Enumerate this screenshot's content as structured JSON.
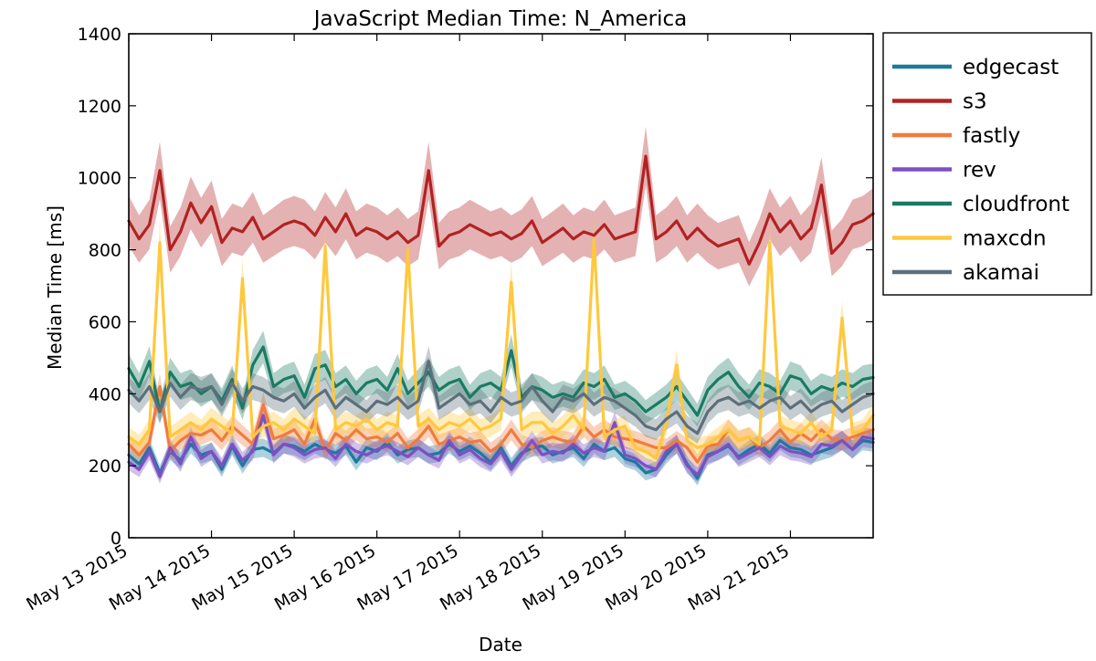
{
  "chart_data": {
    "type": "line",
    "title": "JavaScript Median Time: N_America",
    "xlabel": "Date",
    "ylabel": "Median Time [ms]",
    "ylim": [
      0,
      1400
    ],
    "yticks": [
      0,
      200,
      400,
      600,
      800,
      1000,
      1200,
      1400
    ],
    "xlim": [
      "2015-05-13 00:00",
      "2015-05-22 00:00"
    ],
    "xticks": [
      "May 13 2015",
      "May 14 2015",
      "May 15 2015",
      "May 16 2015",
      "May 17 2015",
      "May 18 2015",
      "May 19 2015",
      "May 20 2015",
      "May 21 2015"
    ],
    "x": [
      "2015-05-13 00:00",
      "2015-05-13 03:00",
      "2015-05-13 06:00",
      "2015-05-13 09:00",
      "2015-05-13 12:00",
      "2015-05-13 15:00",
      "2015-05-13 18:00",
      "2015-05-13 21:00",
      "2015-05-14 00:00",
      "2015-05-14 03:00",
      "2015-05-14 06:00",
      "2015-05-14 09:00",
      "2015-05-14 12:00",
      "2015-05-14 15:00",
      "2015-05-14 18:00",
      "2015-05-14 21:00",
      "2015-05-15 00:00",
      "2015-05-15 03:00",
      "2015-05-15 06:00",
      "2015-05-15 09:00",
      "2015-05-15 12:00",
      "2015-05-15 15:00",
      "2015-05-15 18:00",
      "2015-05-15 21:00",
      "2015-05-16 00:00",
      "2015-05-16 03:00",
      "2015-05-16 06:00",
      "2015-05-16 09:00",
      "2015-05-16 12:00",
      "2015-05-16 15:00",
      "2015-05-16 18:00",
      "2015-05-16 21:00",
      "2015-05-17 00:00",
      "2015-05-17 03:00",
      "2015-05-17 06:00",
      "2015-05-17 09:00",
      "2015-05-17 12:00",
      "2015-05-17 15:00",
      "2015-05-17 18:00",
      "2015-05-17 21:00",
      "2015-05-18 00:00",
      "2015-05-18 03:00",
      "2015-05-18 06:00",
      "2015-05-18 09:00",
      "2015-05-18 12:00",
      "2015-05-18 15:00",
      "2015-05-18 18:00",
      "2015-05-18 21:00",
      "2015-05-19 00:00",
      "2015-05-19 03:00",
      "2015-05-19 06:00",
      "2015-05-19 09:00",
      "2015-05-19 12:00",
      "2015-05-19 15:00",
      "2015-05-19 18:00",
      "2015-05-19 21:00",
      "2015-05-20 00:00",
      "2015-05-20 03:00",
      "2015-05-20 06:00",
      "2015-05-20 09:00",
      "2015-05-20 12:00",
      "2015-05-20 15:00",
      "2015-05-20 18:00",
      "2015-05-20 21:00",
      "2015-05-21 00:00",
      "2015-05-21 03:00",
      "2015-05-21 06:00",
      "2015-05-21 09:00",
      "2015-05-21 12:00",
      "2015-05-21 15:00",
      "2015-05-21 18:00",
      "2015-05-21 21:00",
      "2015-05-22 00:00"
    ],
    "grid": false,
    "legend_placement": "outside-right-top",
    "series": [
      {
        "name": "edgecast",
        "color": "#1b7a9e",
        "values": [
          230,
          205,
          250,
          180,
          240,
          215,
          260,
          230,
          240,
          190,
          255,
          200,
          245,
          250,
          235,
          260,
          255,
          240,
          260,
          245,
          235,
          255,
          210,
          250,
          240,
          265,
          230,
          245,
          250,
          230,
          235,
          260,
          240,
          255,
          235,
          210,
          250,
          200,
          235,
          250,
          255,
          230,
          240,
          250,
          220,
          260,
          240,
          250,
          220,
          210,
          180,
          190,
          230,
          260,
          205,
          165,
          230,
          240,
          255,
          225,
          245,
          260,
          235,
          270,
          250,
          245,
          230,
          240,
          250,
          270,
          245,
          270,
          265
        ]
      },
      {
        "name": "s3",
        "color": "#b22222",
        "values": [
          880,
          830,
          870,
          1020,
          800,
          850,
          930,
          875,
          920,
          820,
          860,
          850,
          890,
          830,
          850,
          870,
          880,
          870,
          840,
          890,
          850,
          900,
          840,
          860,
          850,
          830,
          850,
          820,
          840,
          1020,
          810,
          840,
          850,
          870,
          855,
          840,
          850,
          830,
          845,
          880,
          820,
          840,
          860,
          830,
          850,
          840,
          870,
          830,
          840,
          850,
          1060,
          830,
          850,
          880,
          830,
          860,
          830,
          810,
          820,
          830,
          760,
          820,
          900,
          850,
          880,
          830,
          860,
          980,
          790,
          820,
          870,
          880,
          900
        ]
      },
      {
        "name": "fastly",
        "color": "#f07b3f",
        "values": [
          260,
          230,
          265,
          420,
          240,
          270,
          290,
          285,
          300,
          270,
          310,
          285,
          260,
          370,
          275,
          285,
          300,
          260,
          330,
          240,
          290,
          270,
          300,
          275,
          280,
          265,
          290,
          250,
          275,
          310,
          260,
          270,
          280,
          265,
          270,
          240,
          260,
          300,
          260,
          250,
          270,
          280,
          270,
          265,
          310,
          280,
          300,
          280,
          275,
          270,
          260,
          250,
          250,
          270,
          250,
          210,
          255,
          260,
          300,
          270,
          280,
          250,
          270,
          300,
          265,
          290,
          270,
          300,
          275,
          270,
          280,
          290,
          300
        ]
      },
      {
        "name": "rev",
        "color": "#7e4fc4",
        "values": [
          210,
          190,
          240,
          170,
          250,
          205,
          280,
          220,
          240,
          200,
          260,
          215,
          240,
          340,
          230,
          260,
          250,
          230,
          245,
          250,
          220,
          260,
          240,
          230,
          245,
          255,
          240,
          225,
          250,
          230,
          215,
          270,
          230,
          245,
          220,
          205,
          240,
          190,
          230,
          270,
          230,
          240,
          235,
          260,
          235,
          250,
          240,
          320,
          230,
          220,
          200,
          190,
          240,
          260,
          200,
          175,
          225,
          240,
          260,
          220,
          235,
          250,
          225,
          255,
          240,
          235,
          225,
          260,
          255,
          270,
          245,
          280,
          275
        ]
      },
      {
        "name": "cloudfront",
        "color": "#1b7a63",
        "values": [
          470,
          420,
          490,
          350,
          460,
          420,
          430,
          400,
          420,
          380,
          440,
          360,
          480,
          530,
          420,
          440,
          450,
          390,
          470,
          480,
          420,
          440,
          400,
          430,
          440,
          410,
          470,
          400,
          430,
          460,
          410,
          430,
          440,
          390,
          420,
          430,
          410,
          520,
          390,
          420,
          410,
          390,
          400,
          390,
          430,
          420,
          440,
          390,
          400,
          380,
          350,
          370,
          390,
          420,
          380,
          340,
          410,
          440,
          460,
          420,
          390,
          430,
          420,
          400,
          450,
          440,
          400,
          420,
          410,
          430,
          420,
          440,
          445
        ]
      },
      {
        "name": "maxcdn",
        "color": "#ffc83d",
        "values": [
          280,
          260,
          300,
          820,
          280,
          300,
          320,
          300,
          330,
          310,
          290,
          720,
          280,
          310,
          320,
          300,
          330,
          310,
          290,
          810,
          300,
          320,
          310,
          330,
          300,
          320,
          310,
          800,
          310,
          330,
          300,
          320,
          310,
          330,
          300,
          310,
          330,
          710,
          300,
          320,
          320,
          290,
          310,
          340,
          300,
          830,
          280,
          300,
          310,
          250,
          240,
          220,
          320,
          480,
          270,
          250,
          260,
          280,
          300,
          270,
          280,
          260,
          820,
          310,
          300,
          290,
          320,
          280,
          300,
          610,
          290,
          300,
          340
        ]
      },
      {
        "name": "akamai",
        "color": "#5c6f7b",
        "values": [
          410,
          380,
          420,
          350,
          430,
          390,
          420,
          410,
          420,
          370,
          430,
          380,
          420,
          410,
          390,
          380,
          400,
          360,
          390,
          410,
          360,
          390,
          370,
          350,
          380,
          370,
          390,
          360,
          380,
          490,
          360,
          380,
          400,
          370,
          380,
          350,
          390,
          370,
          380,
          420,
          380,
          350,
          390,
          380,
          400,
          370,
          390,
          380,
          360,
          340,
          310,
          300,
          330,
          350,
          310,
          290,
          350,
          380,
          390,
          370,
          380,
          360,
          380,
          390,
          360,
          380,
          350,
          370,
          380,
          350,
          370,
          390,
          400
        ]
      }
    ]
  },
  "legend": {
    "items": [
      "edgecast",
      "s3",
      "fastly",
      "rev",
      "cloudfront",
      "maxcdn",
      "akamai"
    ]
  }
}
